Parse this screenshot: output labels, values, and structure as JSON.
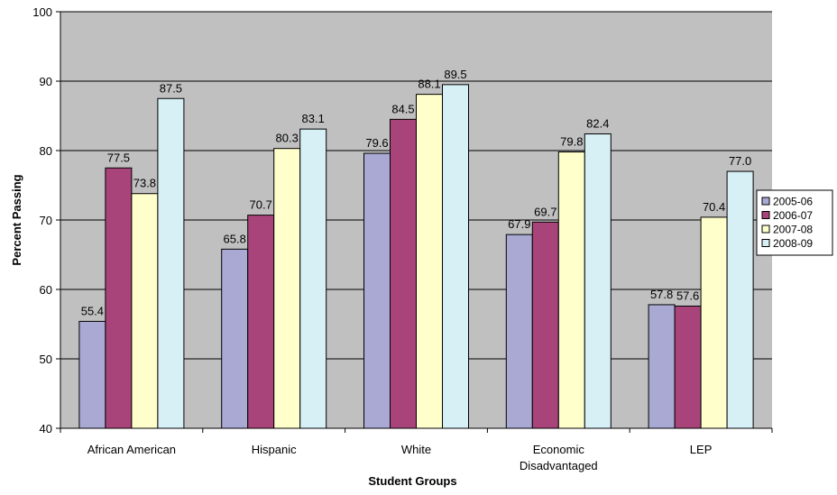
{
  "chart_data": {
    "type": "bar",
    "title": "",
    "xlabel": "Student Groups",
    "ylabel": "Percent Passing",
    "ylim": [
      40,
      100
    ],
    "yticks": [
      40,
      50,
      60,
      70,
      80,
      90,
      100
    ],
    "grid": true,
    "legend_position": "right",
    "categories": [
      [
        "African American"
      ],
      [
        "Hispanic"
      ],
      [
        "White"
      ],
      [
        "Economic",
        "Disadvantaged"
      ],
      [
        "LEP"
      ]
    ],
    "series": [
      {
        "name": "2005-06",
        "color": "#a9a9d4",
        "values": [
          55.4,
          65.8,
          79.6,
          67.9,
          57.8
        ],
        "labels": [
          "55.4",
          "65.8",
          "79.6",
          "67.9",
          "57.8"
        ]
      },
      {
        "name": "2006-07",
        "color": "#a8447a",
        "values": [
          77.5,
          70.7,
          84.5,
          69.7,
          57.6
        ],
        "labels": [
          "77.5",
          "70.7",
          "84.5",
          "69.7",
          "57.6"
        ]
      },
      {
        "name": "2007-08",
        "color": "#ffffcc",
        "values": [
          73.8,
          80.3,
          88.1,
          79.8,
          70.4
        ],
        "labels": [
          "73.8",
          "80.3",
          "88.1",
          "79.8",
          "70.4"
        ]
      },
      {
        "name": "2008-09",
        "color": "#d6f0f6",
        "values": [
          87.5,
          83.1,
          89.5,
          82.4,
          77.0
        ],
        "labels": [
          "87.5",
          "83.1",
          "89.5",
          "82.4",
          "77.0"
        ]
      }
    ],
    "colors": {
      "plot_background": "#c0c0c0",
      "gridline": "#000000",
      "bar_outline": "#000000"
    }
  }
}
